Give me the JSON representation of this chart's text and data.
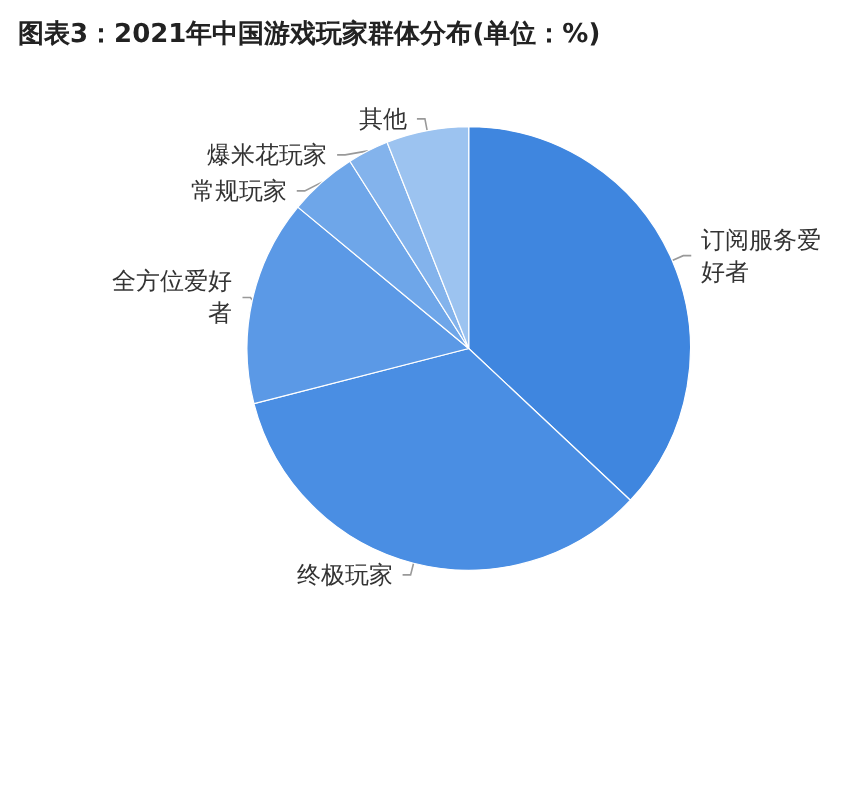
{
  "chart_data": {
    "type": "pie",
    "title": "图表3：2021年中国游戏玩家群体分布(单位：%)",
    "categories": [
      "订阅服务爱好者",
      "终极玩家",
      "全方位爱好者",
      "常规玩家",
      "爆米花玩家",
      "其他"
    ],
    "values": [
      37,
      34,
      15,
      5,
      3,
      6
    ],
    "colors": [
      "#3f86df",
      "#4a8ee3",
      "#5b99e6",
      "#6ea6e9",
      "#83b3ec",
      "#9cc3f0"
    ],
    "legend": false
  }
}
